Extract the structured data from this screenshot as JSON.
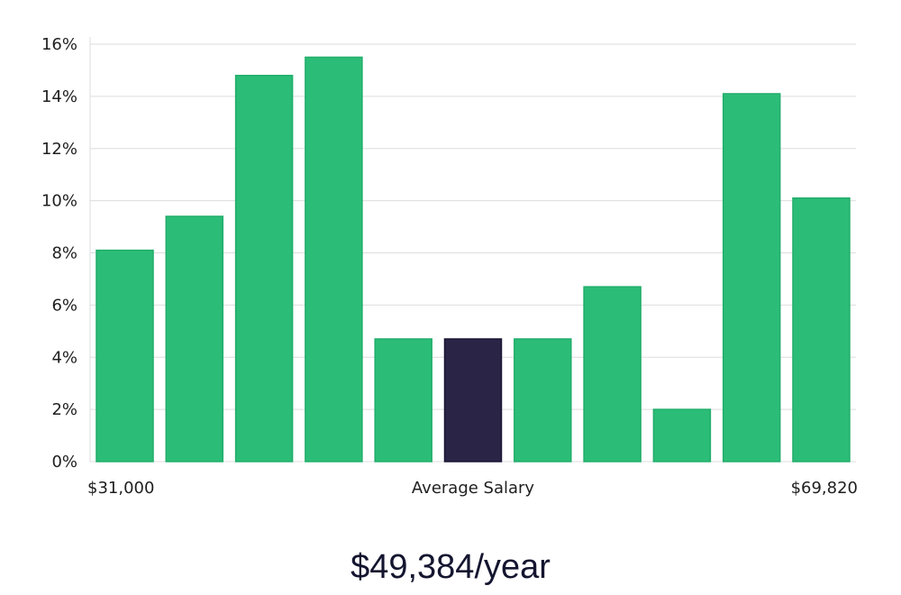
{
  "chart_data": {
    "type": "bar",
    "categories": [
      "1",
      "2",
      "3",
      "4",
      "5",
      "6",
      "7",
      "8",
      "9",
      "10",
      "11"
    ],
    "values": [
      8.1,
      9.4,
      14.8,
      15.5,
      4.7,
      4.7,
      4.7,
      6.7,
      2.0,
      14.1,
      10.1
    ],
    "highlight_index": 5,
    "ylim": [
      0,
      16
    ],
    "y_ticks": [
      0,
      2,
      4,
      6,
      8,
      10,
      12,
      14,
      16
    ],
    "y_tick_suffix": "%",
    "x_left_label": "$31,000",
    "x_center_label": "Average Salary",
    "x_right_label": "$69,820",
    "grid": true,
    "colors": {
      "bar": "#2bbd77",
      "bar_highlight": "#2a2447",
      "grid": "#dddddd",
      "axis_text": "#1f1f1f"
    }
  },
  "caption": {
    "salary": "$49,384/year"
  }
}
